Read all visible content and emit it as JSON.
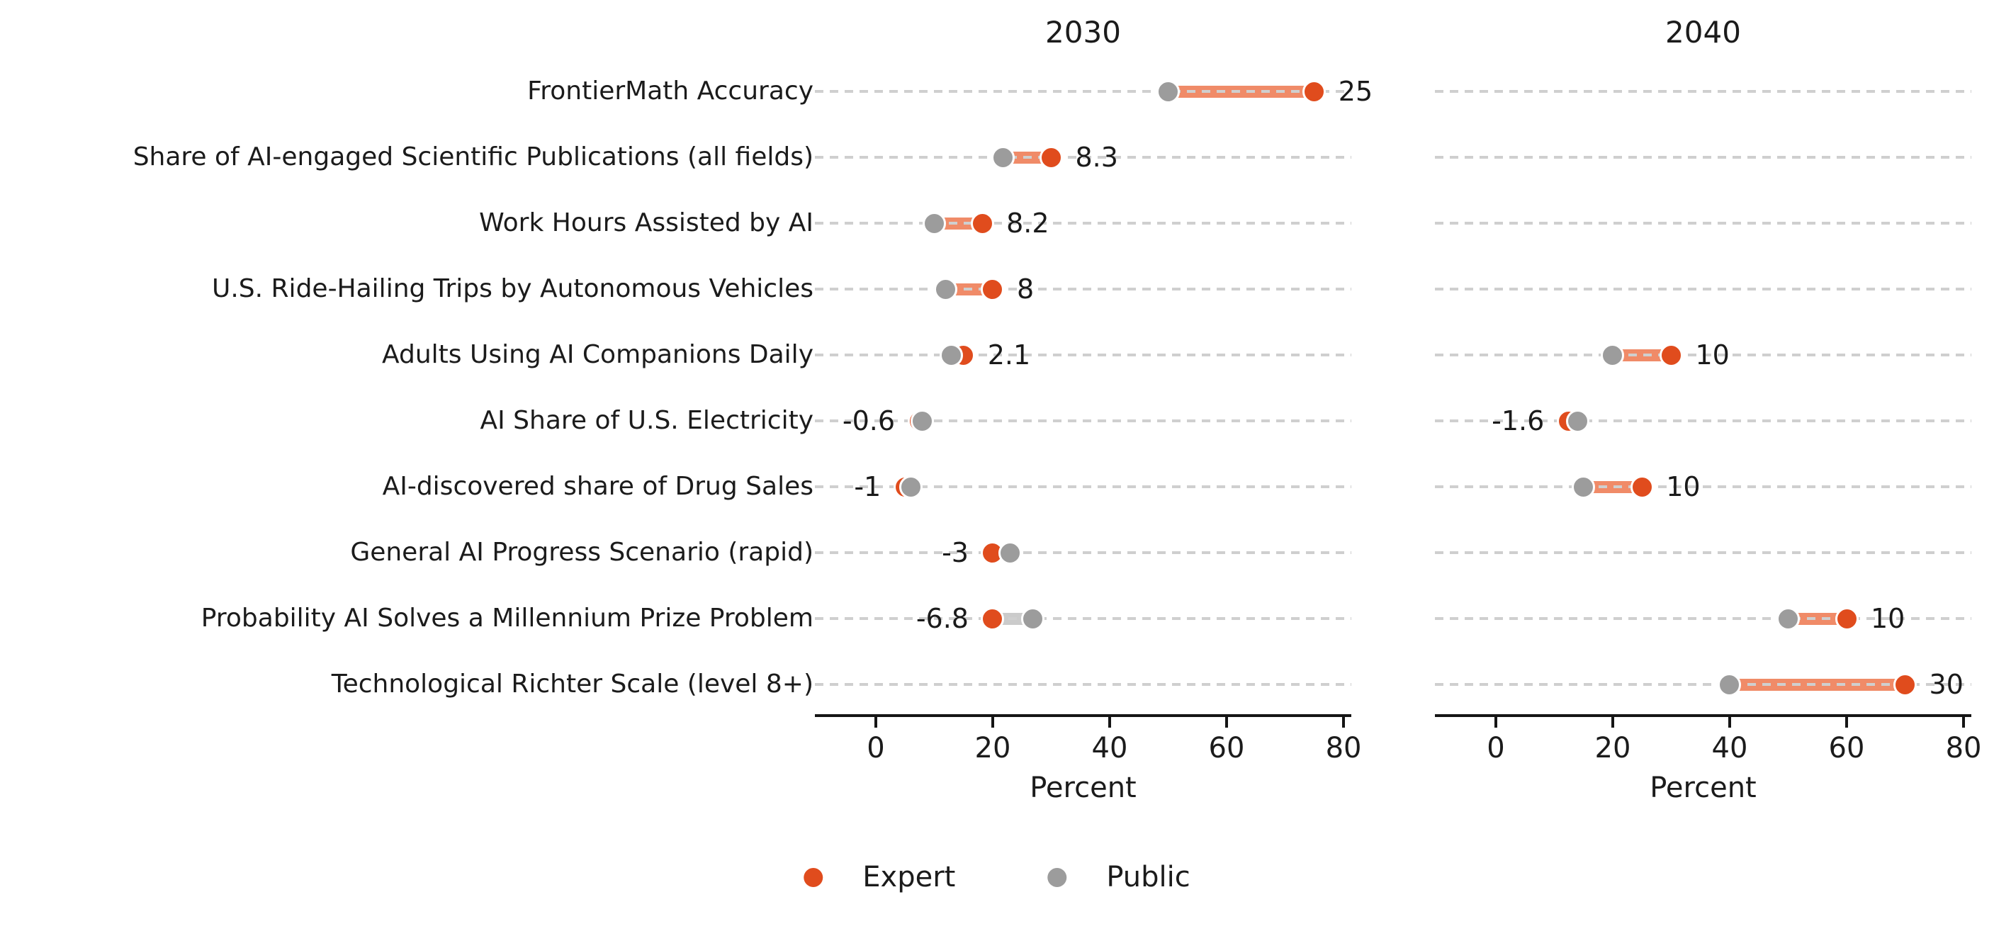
{
  "chart_data": {
    "type": "dumbbell",
    "description": "Two-panel dumbbell (dot-plot) chart comparing Expert vs Public percentage predictions for 2030 and 2040; numeric annotations show Expert minus Public gap.",
    "xlabel": "Percent",
    "xticks": [
      0,
      20,
      40,
      60,
      80
    ],
    "xlim": [
      -10.42,
      81.33
    ],
    "grid": "dashed horizontal per category row",
    "legend_position": "bottom center",
    "legend": [
      {
        "label": "Expert",
        "color": "#E04C1D"
      },
      {
        "label": "Public",
        "color": "#9C9C9C"
      }
    ],
    "colors": {
      "expert": "#E04C1D",
      "public": "#9C9C9C",
      "band_positive": "#F08B68",
      "band_negative": "#CBCBCB",
      "gridline": "#CFCFCF",
      "axis": "#151515",
      "text": "#1A1A1A"
    },
    "categories": [
      "FrontierMath Accuracy",
      "Share of AI-engaged Scientific Publications (all fields)",
      "Work Hours Assisted by AI",
      "U.S. Ride-Hailing Trips by Autonomous Vehicles",
      "Adults Using AI Companions Daily",
      "AI Share of U.S. Electricity",
      "AI-discovered share of Drug Sales",
      "General AI Progress Scenario (rapid)",
      "Probability AI Solves a Millennium Prize Problem",
      "Technological Richter Scale (level 8+)"
    ],
    "panels": [
      {
        "title": "2030",
        "expert": [
          75,
          30,
          18.2,
          20,
          15,
          7.4,
          5,
          20,
          20,
          null
        ],
        "public": [
          50,
          21.7,
          10,
          12,
          12.9,
          8,
          6,
          23,
          26.8,
          null
        ],
        "diff_labels": [
          "25",
          "8.3",
          "8.2",
          "8",
          "2.1",
          "-0.6",
          "-1",
          "-3",
          "-6.8",
          null
        ]
      },
      {
        "title": "2040",
        "expert": [
          null,
          null,
          null,
          null,
          30,
          12.4,
          25,
          null,
          60,
          70
        ],
        "public": [
          null,
          null,
          null,
          null,
          20,
          14,
          15,
          null,
          50,
          40
        ],
        "diff_labels": [
          null,
          null,
          null,
          null,
          "10",
          "-1.6",
          "10",
          null,
          "10",
          "30"
        ]
      }
    ]
  }
}
